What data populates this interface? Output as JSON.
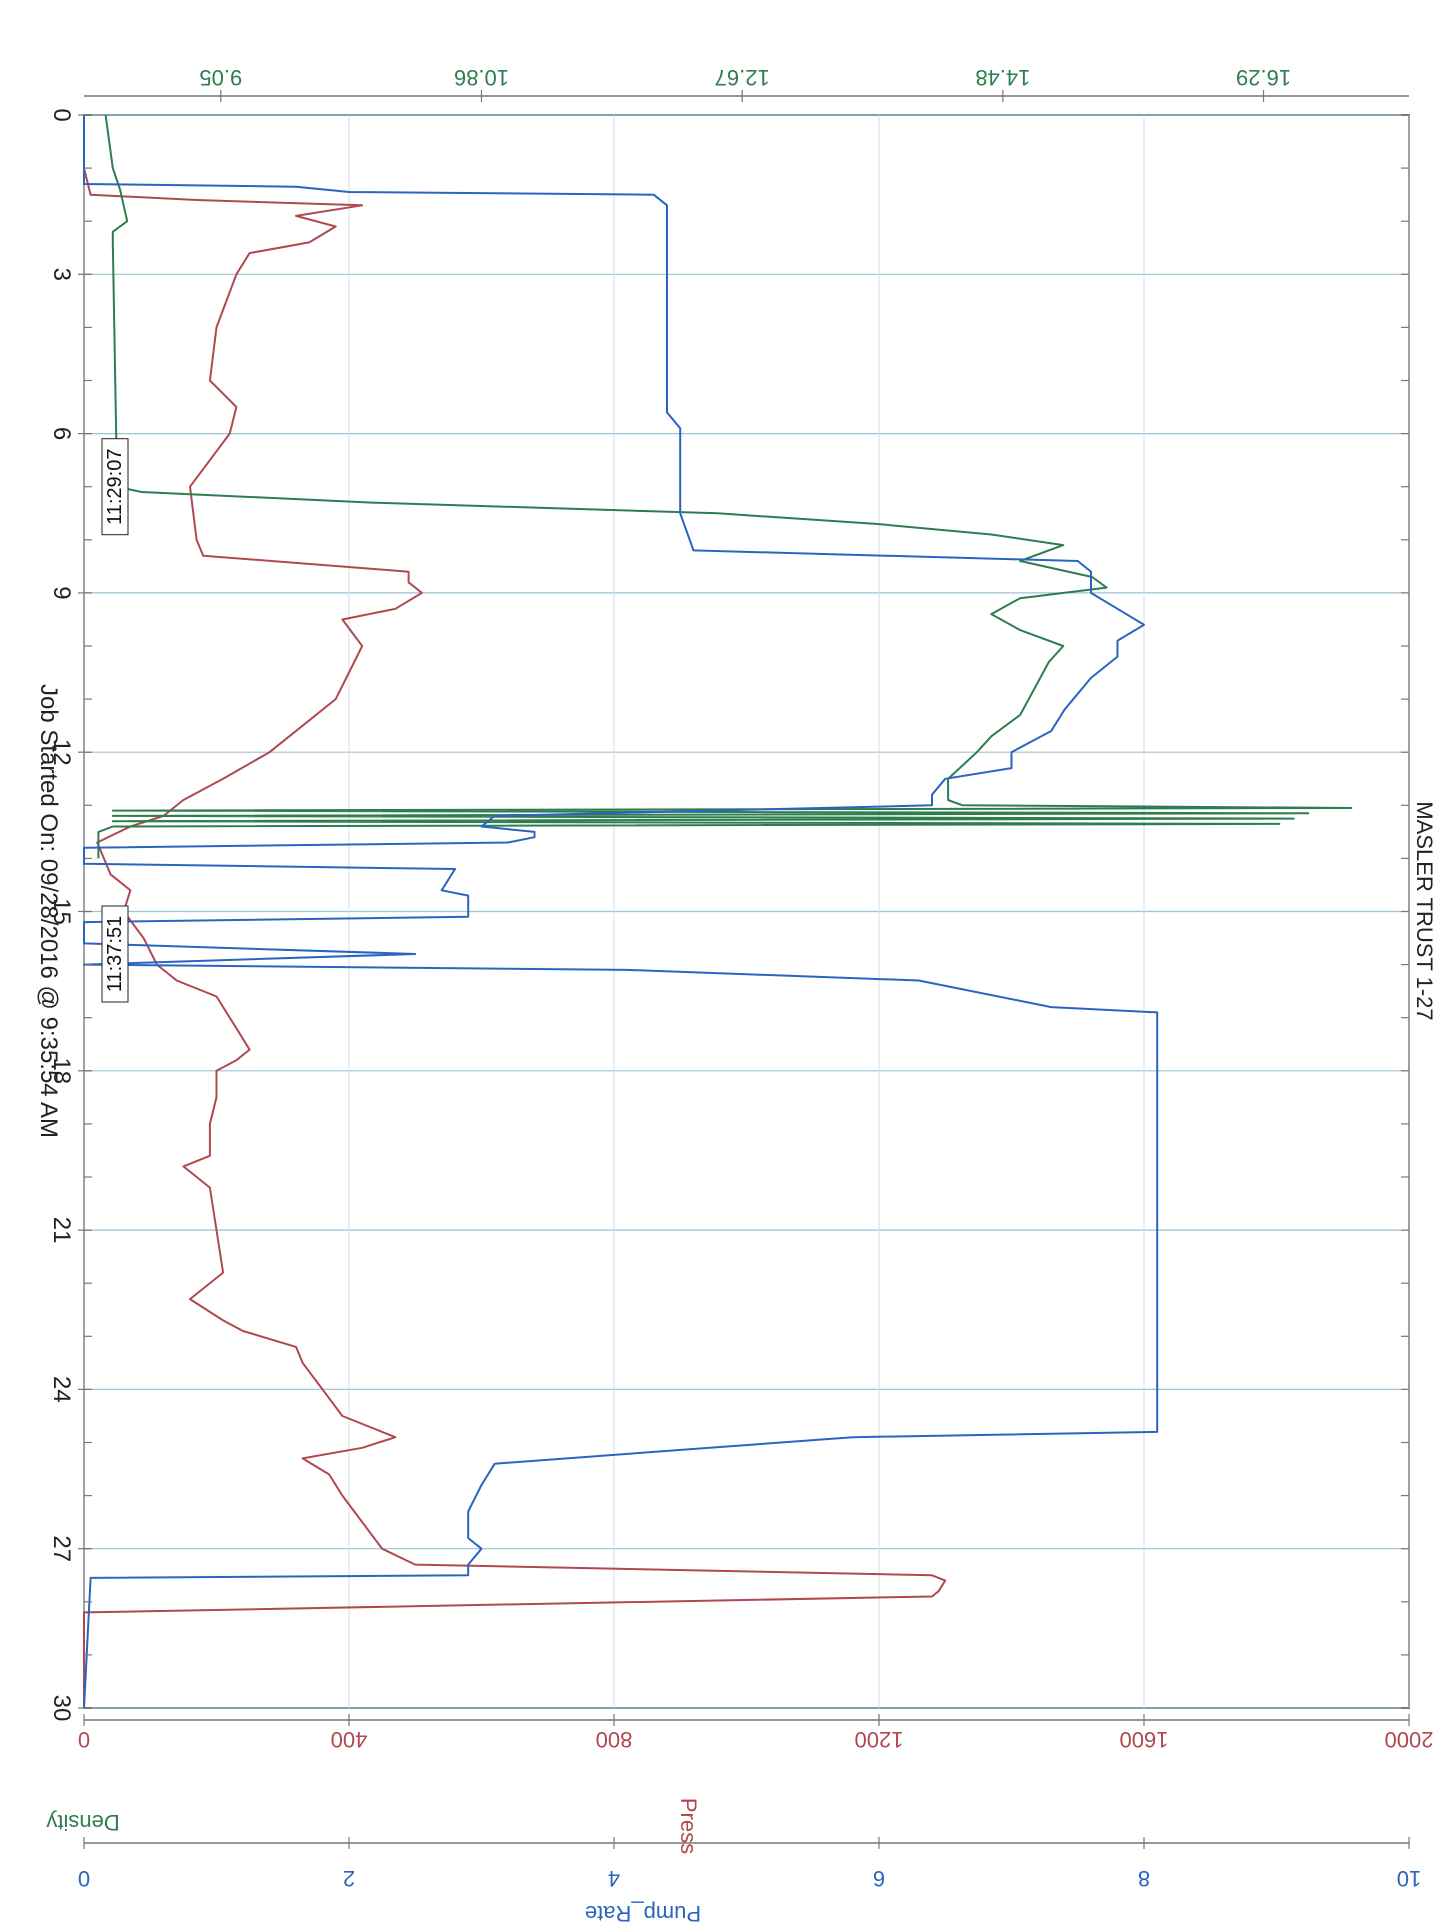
{
  "chart_data": {
    "type": "line",
    "title": "MASLER TRUST 1-27",
    "footer": "Job Started On: 09/28/2016 @ 9:35:54 AM",
    "x": {
      "label": "",
      "ticks": [
        "0",
        "3",
        "6",
        "9",
        "12",
        "15",
        "18",
        "21",
        "24",
        "27",
        "30"
      ],
      "range": [
        0,
        30
      ]
    },
    "axes": {
      "press": {
        "label": "Press",
        "color": "#b0484f",
        "range": [
          0,
          2000
        ],
        "ticks": [
          "2000",
          "1600",
          "1200",
          "800",
          "400",
          "0"
        ]
      },
      "density": {
        "label": "Density",
        "color": "#2e7d4f",
        "range": [
          8.1,
          17.3
        ],
        "ticks": [
          "16.29",
          "14.48",
          "12.67",
          "10.86",
          "9.05"
        ]
      },
      "pump_rate": {
        "label": "Pump_Rate",
        "color": "#2a64c0",
        "range": [
          0,
          10
        ],
        "ticks": [
          "10",
          "8",
          "6",
          "4",
          "2",
          "0"
        ]
      }
    },
    "annotations": [
      "11:29:07",
      "11:37:51"
    ],
    "series": [
      {
        "name": "Press",
        "color": "#b0484f",
        "points": [
          [
            0,
            0
          ],
          [
            1.0,
            0
          ],
          [
            1.5,
            10
          ],
          [
            1.6,
            170
          ],
          [
            1.7,
            420
          ],
          [
            1.9,
            320
          ],
          [
            2.1,
            380
          ],
          [
            2.4,
            340
          ],
          [
            2.6,
            250
          ],
          [
            3.0,
            230
          ],
          [
            4.0,
            200
          ],
          [
            5.0,
            190
          ],
          [
            5.5,
            230
          ],
          [
            6.0,
            220
          ],
          [
            7.0,
            160
          ],
          [
            8.0,
            170
          ],
          [
            8.3,
            180
          ],
          [
            8.6,
            490
          ],
          [
            8.8,
            490
          ],
          [
            9.0,
            510
          ],
          [
            9.3,
            470
          ],
          [
            9.5,
            390
          ],
          [
            10.0,
            420
          ],
          [
            10.5,
            400
          ],
          [
            11.0,
            380
          ],
          [
            11.5,
            330
          ],
          [
            12.0,
            280
          ],
          [
            12.5,
            210
          ],
          [
            12.9,
            150
          ],
          [
            13.2,
            120
          ],
          [
            13.4,
            70
          ],
          [
            13.7,
            20
          ],
          [
            14.0,
            30
          ],
          [
            14.3,
            40
          ],
          [
            14.6,
            70
          ],
          [
            15.0,
            60
          ],
          [
            15.5,
            90
          ],
          [
            16.0,
            110
          ],
          [
            16.3,
            140
          ],
          [
            16.6,
            200
          ],
          [
            17.2,
            230
          ],
          [
            17.6,
            250
          ],
          [
            17.8,
            230
          ],
          [
            18.0,
            200
          ],
          [
            18.5,
            200
          ],
          [
            19.0,
            190
          ],
          [
            19.6,
            190
          ],
          [
            19.8,
            150
          ],
          [
            20.2,
            190
          ],
          [
            21.0,
            200
          ],
          [
            21.8,
            210
          ],
          [
            22.3,
            160
          ],
          [
            22.7,
            210
          ],
          [
            22.9,
            240
          ],
          [
            23.2,
            320
          ],
          [
            23.5,
            330
          ],
          [
            24.0,
            360
          ],
          [
            24.5,
            390
          ],
          [
            24.9,
            470
          ],
          [
            25.1,
            420
          ],
          [
            25.3,
            330
          ],
          [
            25.6,
            370
          ],
          [
            26.0,
            390
          ],
          [
            26.5,
            420
          ],
          [
            27.0,
            450
          ],
          [
            27.3,
            500
          ],
          [
            27.5,
            1280
          ],
          [
            27.6,
            1300
          ],
          [
            27.8,
            1290
          ],
          [
            27.9,
            1280
          ],
          [
            28.2,
            0
          ],
          [
            30,
            0
          ]
        ]
      },
      {
        "name": "Density",
        "color": "#2e7d4f",
        "points": [
          [
            0,
            8.25
          ],
          [
            1.0,
            8.3
          ],
          [
            1.4,
            8.35
          ],
          [
            2.0,
            8.4
          ],
          [
            2.2,
            8.3
          ],
          [
            2.4,
            8.3
          ],
          [
            7.0,
            8.33
          ],
          [
            7.1,
            8.5
          ],
          [
            7.3,
            10.1
          ],
          [
            7.5,
            12.5
          ],
          [
            7.7,
            13.6
          ],
          [
            7.9,
            14.4
          ],
          [
            8.1,
            14.9
          ],
          [
            8.4,
            14.6
          ],
          [
            8.7,
            15.1
          ],
          [
            8.9,
            15.2
          ],
          [
            9.1,
            14.6
          ],
          [
            9.4,
            14.4
          ],
          [
            9.7,
            14.6
          ],
          [
            10.0,
            14.9
          ],
          [
            10.3,
            14.8
          ],
          [
            10.8,
            14.7
          ],
          [
            11.3,
            14.6
          ],
          [
            11.7,
            14.4
          ],
          [
            12.0,
            14.3
          ],
          [
            12.5,
            14.1
          ],
          [
            12.9,
            14.1
          ],
          [
            13.0,
            14.2
          ],
          [
            13.05,
            16.9
          ],
          [
            13.1,
            8.3
          ],
          [
            13.15,
            16.6
          ],
          [
            13.2,
            8.3
          ],
          [
            13.25,
            16.5
          ],
          [
            13.3,
            8.3
          ],
          [
            13.35,
            16.4
          ],
          [
            13.4,
            8.3
          ],
          [
            13.5,
            8.2
          ],
          [
            14.0,
            8.2
          ]
        ]
      },
      {
        "name": "Pump_Rate",
        "color": "#2a64c0",
        "points": [
          [
            0,
            0
          ],
          [
            1.1,
            0
          ],
          [
            1.3,
            0
          ],
          [
            1.35,
            1.6
          ],
          [
            1.45,
            2.0
          ],
          [
            1.5,
            4.3
          ],
          [
            1.7,
            4.4
          ],
          [
            5.6,
            4.4
          ],
          [
            5.9,
            4.5
          ],
          [
            7.5,
            4.5
          ],
          [
            8.2,
            4.6
          ],
          [
            8.4,
            7.5
          ],
          [
            8.6,
            7.6
          ],
          [
            9.0,
            7.6
          ],
          [
            9.3,
            7.8
          ],
          [
            9.6,
            8.0
          ],
          [
            9.9,
            7.8
          ],
          [
            10.2,
            7.8
          ],
          [
            10.6,
            7.6
          ],
          [
            11.2,
            7.4
          ],
          [
            11.6,
            7.3
          ],
          [
            12.0,
            7.0
          ],
          [
            12.3,
            7.0
          ],
          [
            12.5,
            6.5
          ],
          [
            12.8,
            6.4
          ],
          [
            13.0,
            6.4
          ],
          [
            13.2,
            3.1
          ],
          [
            13.4,
            3.0
          ],
          [
            13.5,
            3.4
          ],
          [
            13.6,
            3.4
          ],
          [
            13.7,
            3.2
          ],
          [
            13.8,
            0
          ],
          [
            14.1,
            0
          ],
          [
            14.2,
            2.8
          ],
          [
            14.6,
            2.7
          ],
          [
            14.7,
            2.9
          ],
          [
            15.1,
            2.9
          ],
          [
            15.2,
            0
          ],
          [
            15.6,
            0
          ],
          [
            15.8,
            2.5
          ],
          [
            16.0,
            0
          ],
          [
            16.1,
            4.1
          ],
          [
            16.3,
            6.3
          ],
          [
            16.8,
            7.3
          ],
          [
            16.9,
            8.1
          ],
          [
            17.5,
            8.1
          ],
          [
            20.0,
            8.1
          ],
          [
            23.0,
            8.1
          ],
          [
            24.5,
            8.1
          ],
          [
            24.8,
            8.1
          ],
          [
            24.9,
            5.8
          ],
          [
            25.4,
            3.1
          ],
          [
            25.8,
            3.0
          ],
          [
            26.3,
            2.9
          ],
          [
            26.8,
            2.9
          ],
          [
            27.0,
            3.0
          ],
          [
            27.3,
            2.9
          ],
          [
            27.5,
            2.9
          ],
          [
            27.55,
            0.05
          ],
          [
            30,
            0
          ]
        ]
      }
    ]
  }
}
